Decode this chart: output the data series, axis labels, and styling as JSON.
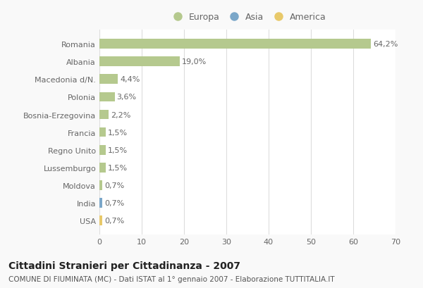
{
  "categories": [
    "USA",
    "India",
    "Moldova",
    "Lussemburgo",
    "Regno Unito",
    "Francia",
    "Bosnia-Erzegovina",
    "Polonia",
    "Macedonia d/N.",
    "Albania",
    "Romania"
  ],
  "values": [
    0.7,
    0.7,
    0.7,
    1.5,
    1.5,
    1.5,
    2.2,
    3.6,
    4.4,
    19.0,
    64.2
  ],
  "labels": [
    "0,7%",
    "0,7%",
    "0,7%",
    "1,5%",
    "1,5%",
    "1,5%",
    "2,2%",
    "3,6%",
    "4,4%",
    "19,0%",
    "64,2%"
  ],
  "colors": [
    "#e8c96a",
    "#7ba7c9",
    "#b5c98e",
    "#b5c98e",
    "#b5c98e",
    "#b5c98e",
    "#b5c98e",
    "#b5c98e",
    "#b5c98e",
    "#b5c98e",
    "#b5c98e"
  ],
  "legend_labels": [
    "Europa",
    "Asia",
    "America"
  ],
  "legend_colors": [
    "#b5c98e",
    "#7ba7c9",
    "#e8c96a"
  ],
  "title": "Cittadini Stranieri per Cittadinanza - 2007",
  "subtitle": "COMUNE DI FIUMINATA (MC) - Dati ISTAT al 1° gennaio 2007 - Elaborazione TUTTITALIA.IT",
  "xlim": [
    0,
    70
  ],
  "xticks": [
    0,
    10,
    20,
    30,
    40,
    50,
    60,
    70
  ],
  "bg_color": "#f9f9f9",
  "plot_bg_color": "#ffffff",
  "grid_color": "#dddddd",
  "bar_height": 0.55,
  "label_color": "#666666",
  "ylabel_color": "#666666",
  "title_fontsize": 10,
  "subtitle_fontsize": 7.5,
  "tick_fontsize": 8,
  "label_fontsize": 8
}
